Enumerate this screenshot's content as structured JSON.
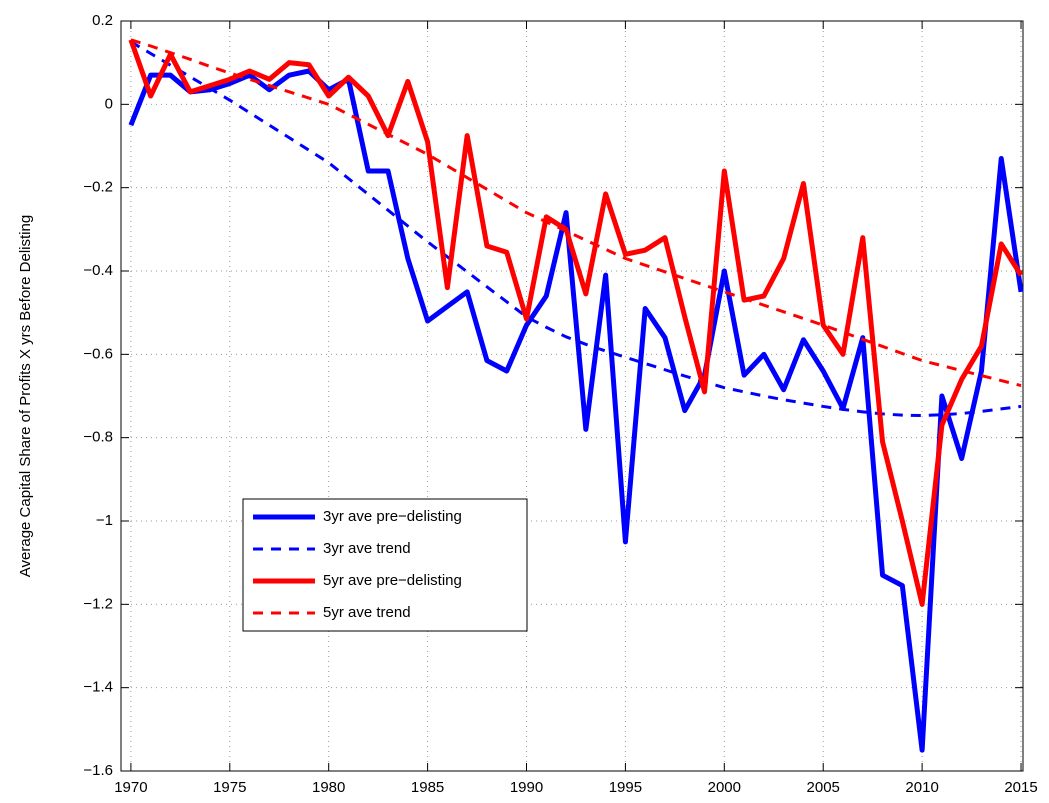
{
  "chart_data": {
    "type": "line",
    "ylabel": "Average Capital Share of Profits X yrs Before Delisting",
    "x": [
      1970,
      1971,
      1972,
      1973,
      1974,
      1975,
      1976,
      1977,
      1978,
      1979,
      1980,
      1981,
      1982,
      1983,
      1984,
      1985,
      1986,
      1987,
      1988,
      1989,
      1990,
      1991,
      1992,
      1993,
      1994,
      1995,
      1996,
      1997,
      1998,
      1999,
      2000,
      2001,
      2002,
      2003,
      2004,
      2005,
      2006,
      2007,
      2008,
      2009,
      2010,
      2011,
      2012,
      2013,
      2014,
      2015
    ],
    "xlim": [
      1969.5,
      2015.1
    ],
    "xticks": [
      1970,
      1975,
      1980,
      1985,
      1990,
      1995,
      2000,
      2005,
      2010,
      2015
    ],
    "ylim": [
      -1.6,
      0.2
    ],
    "yticks": [
      {
        "value": -1.6,
        "label": "−1.6"
      },
      {
        "value": -1.4,
        "label": "−1.4"
      },
      {
        "value": -1.2,
        "label": "−1.2"
      },
      {
        "value": -1,
        "label": "−1"
      },
      {
        "value": -0.8,
        "label": "−0.8"
      },
      {
        "value": -0.6,
        "label": "−0.6"
      },
      {
        "value": -0.4,
        "label": "−0.4"
      },
      {
        "value": -0.2,
        "label": "−0.2"
      },
      0,
      0.2
    ],
    "grid": true,
    "legend": "lower left",
    "series": [
      {
        "name": "3yr ave pre−delisting",
        "color": "#0000ff",
        "style": "solid",
        "values": [
          -0.05,
          0.07,
          0.07,
          0.03,
          0.035,
          0.05,
          0.07,
          0.035,
          0.07,
          0.08,
          0.035,
          0.06,
          -0.16,
          -0.16,
          -0.37,
          -0.52,
          -0.485,
          -0.45,
          -0.615,
          -0.64,
          -0.53,
          -0.46,
          -0.26,
          -0.78,
          -0.41,
          -1.05,
          -0.49,
          -0.56,
          -0.735,
          -0.65,
          -0.4,
          -0.65,
          -0.6,
          -0.685,
          -0.565,
          -0.64,
          -0.73,
          -0.56,
          -1.13,
          -1.155,
          -1.55,
          -0.7,
          -0.85,
          -0.64,
          -0.13,
          -0.45
        ]
      },
      {
        "name": "3yr ave trend",
        "color": "#0000ff",
        "style": "dashed",
        "values": [
          0.15,
          0.122,
          0.094,
          0.066,
          0.038,
          0.01,
          -0.02,
          -0.05,
          -0.08,
          -0.11,
          -0.14,
          -0.178,
          -0.216,
          -0.254,
          -0.292,
          -0.33,
          -0.366,
          -0.402,
          -0.438,
          -0.474,
          -0.51,
          -0.535,
          -0.558,
          -0.576,
          -0.592,
          -0.607,
          -0.622,
          -0.637,
          -0.652,
          -0.666,
          -0.68,
          -0.69,
          -0.7,
          -0.709,
          -0.717,
          -0.725,
          -0.732,
          -0.738,
          -0.743,
          -0.746,
          -0.747,
          -0.745,
          -0.742,
          -0.737,
          -0.731,
          -0.725
        ]
      },
      {
        "name": "5yr ave pre−delisting",
        "color": "#ff0000",
        "style": "solid",
        "values": [
          0.155,
          0.02,
          0.12,
          0.03,
          0.045,
          0.06,
          0.08,
          0.06,
          0.1,
          0.095,
          0.02,
          0.065,
          0.02,
          -0.075,
          0.055,
          -0.09,
          -0.44,
          -0.075,
          -0.34,
          -0.355,
          -0.515,
          -0.27,
          -0.3,
          -0.455,
          -0.215,
          -0.36,
          -0.35,
          -0.32,
          -0.51,
          -0.69,
          -0.16,
          -0.47,
          -0.46,
          -0.37,
          -0.19,
          -0.53,
          -0.6,
          -0.32,
          -0.81,
          -1.0,
          -1.2,
          -0.77,
          -0.66,
          -0.58,
          -0.335,
          -0.41
        ]
      },
      {
        "name": "5yr ave trend",
        "color": "#ff0000",
        "style": "dashed",
        "values": [
          0.155,
          0.14,
          0.124,
          0.108,
          0.091,
          0.075,
          0.06,
          0.045,
          0.03,
          0.015,
          0,
          -0.024,
          -0.048,
          -0.072,
          -0.096,
          -0.12,
          -0.148,
          -0.176,
          -0.204,
          -0.232,
          -0.26,
          -0.282,
          -0.304,
          -0.326,
          -0.348,
          -0.37,
          -0.386,
          -0.402,
          -0.418,
          -0.434,
          -0.45,
          -0.466,
          -0.482,
          -0.498,
          -0.514,
          -0.53,
          -0.547,
          -0.564,
          -0.581,
          -0.598,
          -0.615,
          -0.627,
          -0.639,
          -0.651,
          -0.663,
          -0.675
        ]
      }
    ]
  }
}
